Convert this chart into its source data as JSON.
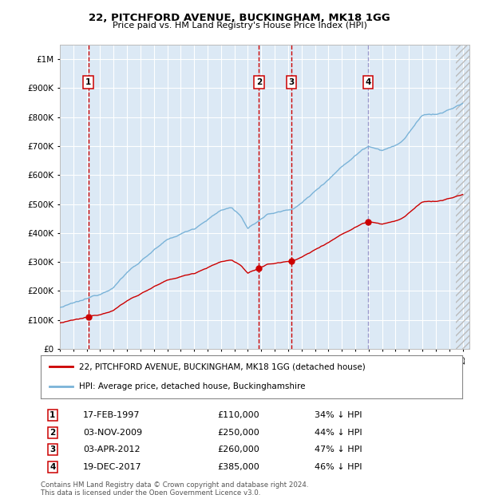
{
  "title": "22, PITCHFORD AVENUE, BUCKINGHAM, MK18 1GG",
  "subtitle": "Price paid vs. HM Land Registry's House Price Index (HPI)",
  "footer": "Contains HM Land Registry data © Crown copyright and database right 2024.\nThis data is licensed under the Open Government Licence v3.0.",
  "legend_line1": "22, PITCHFORD AVENUE, BUCKINGHAM, MK18 1GG (detached house)",
  "legend_line2": "HPI: Average price, detached house, Buckinghamshire",
  "transactions": [
    {
      "num": 1,
      "date": "17-FEB-1997",
      "price": 110000,
      "pct": "34% ↓ HPI",
      "x_year": 1997.12
    },
    {
      "num": 2,
      "date": "03-NOV-2009",
      "price": 250000,
      "pct": "44% ↓ HPI",
      "x_year": 2009.83
    },
    {
      "num": 3,
      "date": "03-APR-2012",
      "price": 260000,
      "pct": "47% ↓ HPI",
      "x_year": 2012.25
    },
    {
      "num": 4,
      "date": "19-DEC-2017",
      "price": 385000,
      "pct": "46% ↓ HPI",
      "x_year": 2017.96
    }
  ],
  "hpi_color": "#7ab3d8",
  "price_color": "#cc0000",
  "vline_color_red": "#cc0000",
  "vline_color_blue": "#9999cc",
  "bg_color": "#dce9f5",
  "grid_color": "#ffffff",
  "xlim": [
    1995.0,
    2025.5
  ],
  "ylim": [
    0,
    1050000
  ],
  "yticks": [
    0,
    100000,
    200000,
    300000,
    400000,
    500000,
    600000,
    700000,
    800000,
    900000,
    1000000
  ]
}
